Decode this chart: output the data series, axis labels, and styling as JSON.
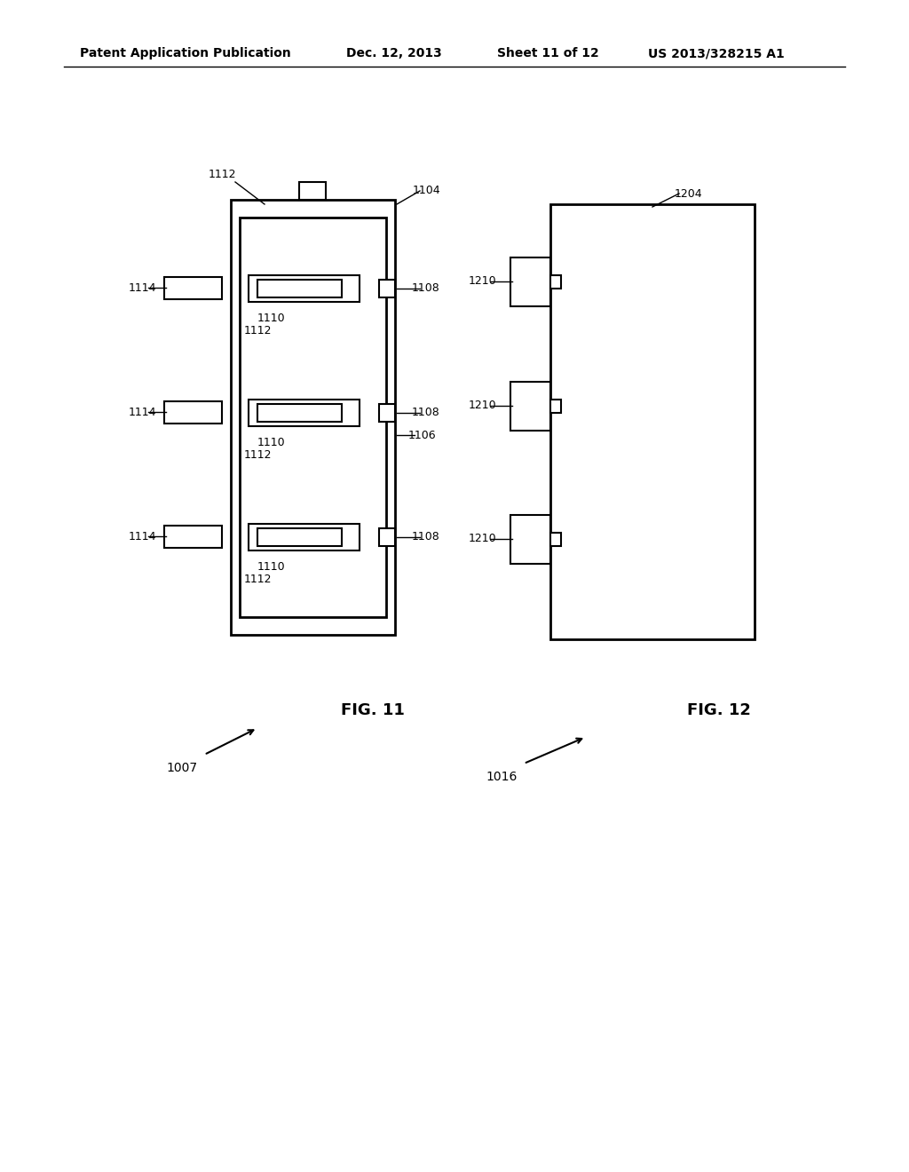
{
  "bg_color": "#ffffff",
  "header_text": "Patent Application Publication",
  "header_date": "Dec. 12, 2013",
  "header_sheet": "Sheet 11 of 12",
  "header_patent": "US 2013/328215 A1",
  "fig11_label": "FIG. 11",
  "fig12_label": "FIG. 12",
  "label_1007": "1007",
  "label_1016": "1016",
  "label_1104": "1104",
  "label_1106": "1106",
  "label_1108": "1108",
  "label_1110": "1110",
  "label_1112": "1112",
  "label_1114": "1114",
  "label_1204": "1204",
  "label_1210": "1210"
}
